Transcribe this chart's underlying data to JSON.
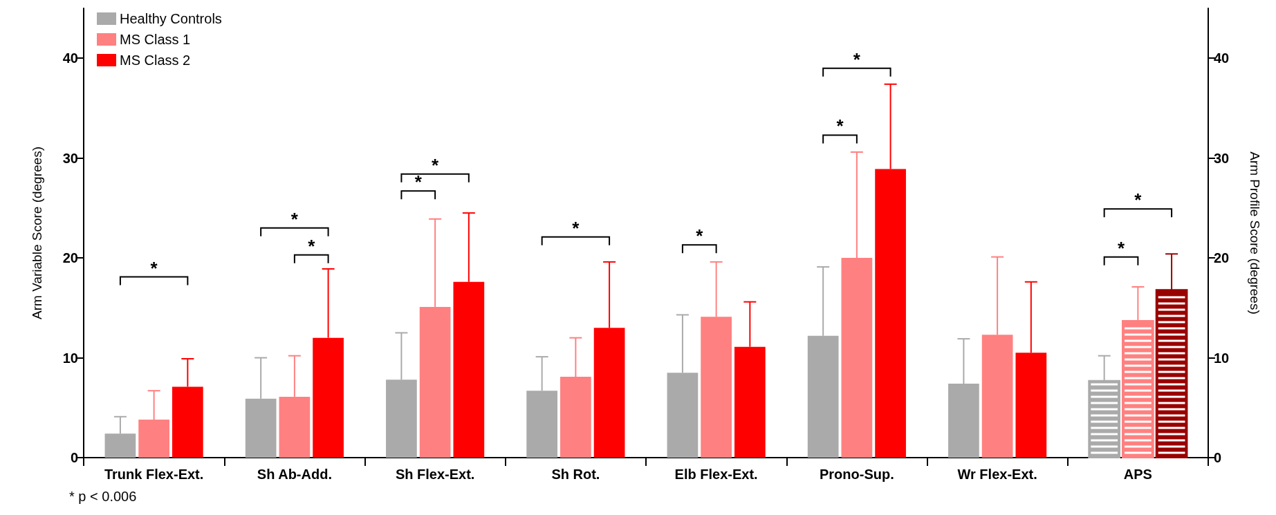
{
  "chart_data": {
    "type": "bar",
    "ylabel": "Arm Variable Score (degrees)",
    "y2label": "Arm Profile Score (degrees)",
    "categories": [
      "Trunk Flex-Ext.",
      "Sh Ab-Add.",
      "Sh Flex-Ext.",
      "Sh Rot.",
      "Elb Flex-Ext.",
      "Prono-Sup.",
      "Wr Flex-Ext.",
      "APS"
    ],
    "series": [
      {
        "name": "Healthy Controls",
        "color": "#aaaaaa",
        "values": [
          2.4,
          5.9,
          7.8,
          6.7,
          8.5,
          12.2,
          7.4,
          null
        ],
        "errors": [
          [
            2.4,
            4.1
          ],
          [
            5.9,
            10.0
          ],
          [
            7.8,
            12.5
          ],
          [
            6.7,
            10.1
          ],
          [
            8.5,
            14.3
          ],
          [
            12.2,
            19.1
          ],
          [
            7.4,
            11.9
          ],
          null
        ]
      },
      {
        "name": "MS Class 1",
        "color": "#ff8080",
        "values": [
          3.8,
          6.1,
          15.1,
          8.1,
          14.1,
          20.0,
          12.3,
          null
        ],
        "errors": [
          [
            3.8,
            6.7
          ],
          [
            6.1,
            10.2
          ],
          [
            15.1,
            23.9
          ],
          [
            8.1,
            12.0
          ],
          [
            14.1,
            19.6
          ],
          [
            20.0,
            30.6
          ],
          [
            12.3,
            20.1
          ],
          null
        ]
      },
      {
        "name": "MS Class 2",
        "color": "#ff0000",
        "values": [
          7.1,
          12.0,
          17.6,
          13.0,
          11.1,
          28.9,
          10.5,
          null
        ],
        "errors": [
          [
            7.1,
            9.9
          ],
          [
            12.0,
            18.9
          ],
          [
            17.6,
            24.5
          ],
          [
            13.0,
            19.6
          ],
          [
            11.1,
            15.6
          ],
          [
            28.9,
            37.4
          ],
          [
            10.5,
            17.6
          ],
          null
        ]
      },
      {
        "axis": "y2",
        "color": "#aaaaaa",
        "values": [
          null,
          null,
          null,
          null,
          null,
          null,
          null,
          7.7
        ],
        "errors": [
          null,
          null,
          null,
          null,
          null,
          null,
          null,
          [
            7.7,
            10.2
          ]
        ]
      },
      {
        "axis": "y2",
        "color": "#ff8080",
        "values": [
          null,
          null,
          null,
          null,
          null,
          null,
          null,
          13.7
        ],
        "errors": [
          null,
          null,
          null,
          null,
          null,
          null,
          null,
          [
            13.7,
            17.1
          ]
        ]
      },
      {
        "axis": "y2",
        "color": "#990000",
        "values": [
          null,
          null,
          null,
          null,
          null,
          null,
          null,
          16.8
        ],
        "errors": [
          null,
          null,
          null,
          null,
          null,
          null,
          null,
          [
            16.8,
            20.4
          ]
        ]
      }
    ],
    "ylim": [
      0,
      45
    ],
    "yticks": [
      0,
      10,
      20,
      30,
      40
    ],
    "y2lim": [
      0,
      45
    ],
    "y2ticks": [
      0,
      10,
      20,
      30,
      40
    ],
    "legend": "top left",
    "grid": false,
    "annotations": [
      "* p < 0.006",
      "*",
      "*",
      "*",
      "*",
      "*",
      "*",
      "*",
      "*",
      "*",
      "*",
      "*"
    ]
  }
}
